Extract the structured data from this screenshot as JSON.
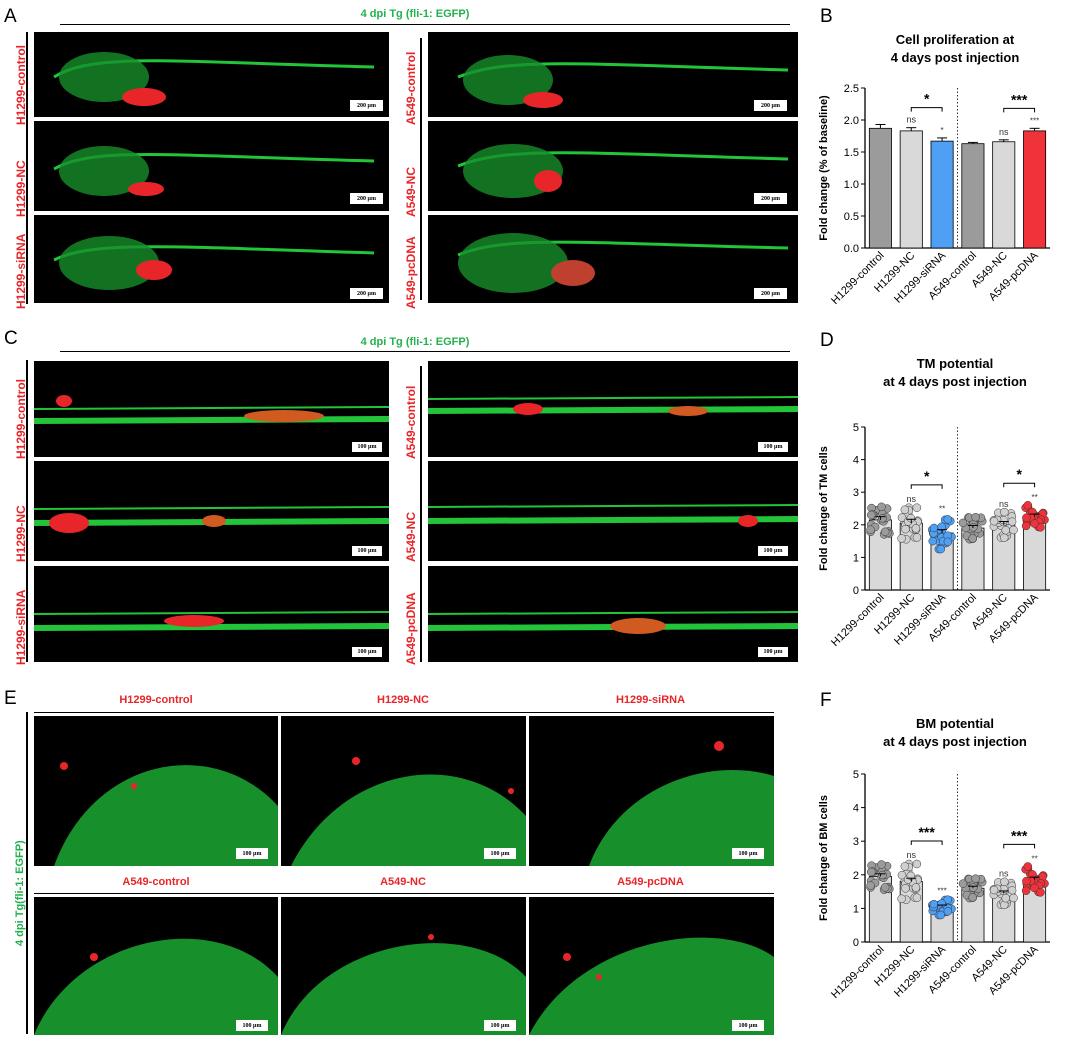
{
  "panels": {
    "A": {
      "letter": "A",
      "header": "4 dpi Tg (fli-1: EGFP)",
      "left_labels": [
        "H1299-control",
        "H1299-NC",
        "H1299-siRNA"
      ],
      "right_labels": [
        "A549-control",
        "A549-NC",
        "A549-pcDNA"
      ],
      "scale": "200 μm"
    },
    "C": {
      "letter": "C",
      "header": "4 dpi Tg (fli-1: EGFP)",
      "left_labels": [
        "H1299-control",
        "H1299-NC",
        "H1299-siRNA"
      ],
      "right_labels": [
        "A549-control",
        "A549-NC",
        "A549-pcDNA"
      ],
      "scale": "100 μm"
    },
    "E": {
      "letter": "E",
      "side_label": "4 dpi Tg(fli-1: EGFP)",
      "top_titles": [
        "H1299-control",
        "H1299-NC",
        "H1299-siRNA"
      ],
      "bottom_titles": [
        "A549-control",
        "A549-NC",
        "A549-pcDNA"
      ],
      "scale": "100 μm"
    }
  },
  "colors": {
    "gray": "#9b9b9b",
    "lightgray": "#d9d9d9",
    "blue": "#4f9ff5",
    "red": "#f0333a",
    "fluor_green": "#22c43a",
    "label_red": "#e8262a"
  },
  "chart_data": [
    {
      "letter": "B",
      "type": "bar",
      "title": "Cell proliferation at 4 days post injection",
      "title_lines": [
        "Cell proliferation at",
        "4 days post injection"
      ],
      "ylabel": "Fold change (% of baseline)",
      "ylim": [
        0,
        2.5
      ],
      "yticks": [
        "0.0",
        "0.5",
        "1.0",
        "1.5",
        "2.0",
        "2.5"
      ],
      "categories": [
        "H1299-control",
        "H1299-NC",
        "H1299-siRNA",
        "A549-control",
        "A549-NC",
        "A549-pcDNA"
      ],
      "values": [
        1.87,
        1.83,
        1.67,
        1.63,
        1.66,
        1.83
      ],
      "errors": [
        0.06,
        0.05,
        0.05,
        0.02,
        0.03,
        0.04
      ],
      "bar_colors": [
        "#9b9b9b",
        "#d9d9d9",
        "#4f9ff5",
        "#9b9b9b",
        "#d9d9d9",
        "#f0333a"
      ],
      "sig_labels": [
        "",
        "ns",
        "*",
        "",
        "ns",
        "***"
      ],
      "brackets": [
        {
          "from": 1,
          "to": 2,
          "label": "*"
        },
        {
          "from": 4,
          "to": 5,
          "label": "***"
        }
      ]
    },
    {
      "letter": "D",
      "type": "bar",
      "title": "TM potential at 4 days post injection",
      "title_lines": [
        "TM potential",
        "at 4 days post injection"
      ],
      "ylabel": "Fold change of TM cells",
      "ylim": [
        0,
        5
      ],
      "yticks": [
        "0",
        "1",
        "2",
        "3",
        "4",
        "5"
      ],
      "categories": [
        "H1299-control",
        "H1299-NC",
        "H1299-siRNA",
        "A549-control",
        "A549-NC",
        "A549-pcDNA"
      ],
      "values": [
        2.15,
        2.05,
        1.75,
        1.9,
        2.0,
        2.25
      ],
      "errors": [
        0.1,
        0.12,
        0.1,
        0.08,
        0.1,
        0.08
      ],
      "spread": [
        0.45,
        0.5,
        0.5,
        0.35,
        0.4,
        0.35
      ],
      "bar_colors": [
        "#d9d9d9",
        "#d9d9d9",
        "#d9d9d9",
        "#d9d9d9",
        "#d9d9d9",
        "#d9d9d9"
      ],
      "dot_colors": [
        "#9b9b9b",
        "#d0d0d0",
        "#4f9ff5",
        "#9b9b9b",
        "#d0d0d0",
        "#f0333a"
      ],
      "sig_labels": [
        "",
        "ns",
        "**",
        "",
        "ns",
        "**"
      ],
      "brackets": [
        {
          "from": 1,
          "to": 2,
          "label": "*"
        },
        {
          "from": 4,
          "to": 5,
          "label": "*"
        }
      ]
    },
    {
      "letter": "F",
      "type": "bar",
      "title": "BM potential at 4 days post injection",
      "title_lines": [
        "BM potential",
        "at 4 days post injection"
      ],
      "ylabel": "Fold change of BM cells",
      "ylim": [
        0,
        5
      ],
      "yticks": [
        "0",
        "1",
        "2",
        "3",
        "4",
        "5"
      ],
      "categories": [
        "H1299-control",
        "H1299-NC",
        "H1299-siRNA",
        "A549-control",
        "A549-NC",
        "A549-pcDNA"
      ],
      "values": [
        1.95,
        1.8,
        1.05,
        1.6,
        1.45,
        1.85
      ],
      "errors": [
        0.08,
        0.1,
        0.05,
        0.06,
        0.07,
        0.08
      ],
      "spread": [
        0.4,
        0.55,
        0.25,
        0.3,
        0.35,
        0.4
      ],
      "bar_colors": [
        "#d9d9d9",
        "#d9d9d9",
        "#d9d9d9",
        "#d9d9d9",
        "#d9d9d9",
        "#d9d9d9"
      ],
      "dot_colors": [
        "#9b9b9b",
        "#d0d0d0",
        "#4f9ff5",
        "#9b9b9b",
        "#d0d0d0",
        "#f0333a"
      ],
      "sig_labels": [
        "",
        "ns",
        "***",
        "",
        "ns",
        "**"
      ],
      "brackets": [
        {
          "from": 1,
          "to": 2,
          "label": "***"
        },
        {
          "from": 4,
          "to": 5,
          "label": "***"
        }
      ]
    }
  ]
}
